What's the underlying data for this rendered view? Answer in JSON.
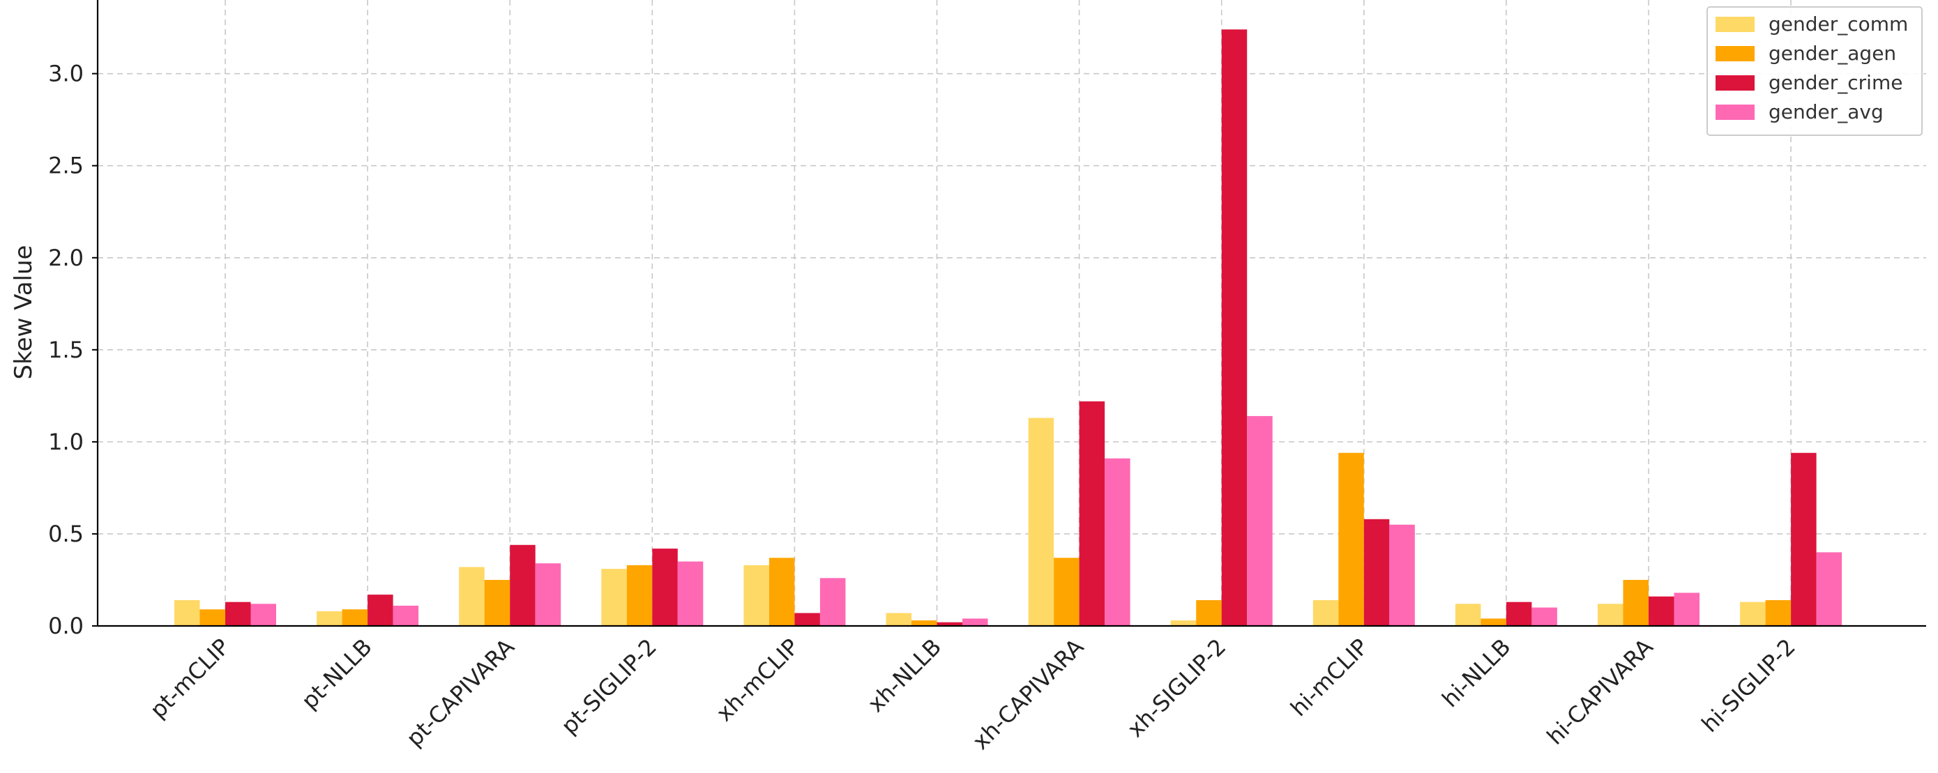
{
  "chart_data": {
    "type": "bar",
    "title": "",
    "xlabel": "",
    "ylabel": "Skew Value",
    "ylim": [
      0,
      3.4
    ],
    "yticks": [
      "0.0",
      "0.5",
      "1.0",
      "1.5",
      "2.0",
      "2.5",
      "3.0"
    ],
    "grid": true,
    "legend_position": "top-right",
    "categories": [
      "pt-mCLIP",
      "pt-NLLB",
      "pt-CAPIVARA",
      "pt-SIGLIP-2",
      "xh-mCLIP",
      "xh-NLLB",
      "xh-CAPIVARA",
      "xh-SIGLIP-2",
      "hi-mCLIP",
      "hi-NLLB",
      "hi-CAPIVARA",
      "hi-SIGLIP-2"
    ],
    "series": [
      {
        "name": "gender_comm",
        "color": "#ffd966",
        "values": [
          0.14,
          0.08,
          0.32,
          0.31,
          0.33,
          0.07,
          1.13,
          0.03,
          0.14,
          0.12,
          0.12,
          0.13
        ]
      },
      {
        "name": "gender_agen",
        "color": "#ffa500",
        "values": [
          0.09,
          0.09,
          0.25,
          0.33,
          0.37,
          0.03,
          0.37,
          0.14,
          0.94,
          0.04,
          0.25,
          0.14
        ]
      },
      {
        "name": "gender_crime",
        "color": "#dc143c",
        "values": [
          0.13,
          0.17,
          0.44,
          0.42,
          0.07,
          0.02,
          1.22,
          3.24,
          0.58,
          0.13,
          0.16,
          0.94
        ]
      },
      {
        "name": "gender_avg",
        "color": "#ff69b4",
        "values": [
          0.12,
          0.11,
          0.34,
          0.35,
          0.26,
          0.04,
          0.91,
          1.14,
          0.55,
          0.1,
          0.18,
          0.4
        ]
      }
    ]
  }
}
